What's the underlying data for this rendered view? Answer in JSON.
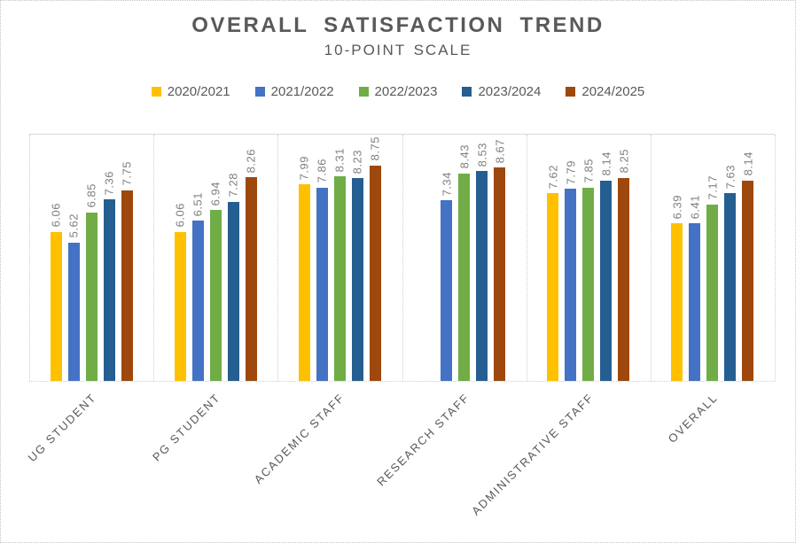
{
  "chart_data": {
    "type": "bar",
    "title": "OVERALL SATISFACTION TREND",
    "subtitle": "10-POINT SCALE",
    "categories": [
      "UG STUDENT",
      "PG STUDENT",
      "ACADEMIC STAFF",
      "RESEARCH STAFF",
      "ADMINISTRATIVE STAFF",
      "OVERALL"
    ],
    "series": [
      {
        "name": "2020/2021",
        "color": "#FFC000",
        "values": [
          6.06,
          6.06,
          7.99,
          null,
          7.62,
          6.39
        ]
      },
      {
        "name": "2021/2022",
        "color": "#4472C4",
        "values": [
          5.62,
          6.51,
          7.86,
          7.34,
          7.79,
          6.41
        ]
      },
      {
        "name": "2022/2023",
        "color": "#70AD47",
        "values": [
          6.85,
          6.94,
          8.31,
          8.43,
          7.85,
          7.17
        ]
      },
      {
        "name": "2023/2024",
        "color": "#255E91",
        "values": [
          7.36,
          7.28,
          8.23,
          8.53,
          8.14,
          7.63
        ]
      },
      {
        "name": "2024/2025",
        "color": "#9E480E",
        "values": [
          7.75,
          8.26,
          8.75,
          8.67,
          8.25,
          8.14
        ]
      }
    ],
    "ylim": [
      0,
      10
    ],
    "value_labels": true,
    "value_label_color": "#7f7f7f",
    "category_label_color": "#595959",
    "legend_position": "top",
    "grid": "vertical category separators, dotted",
    "yaxis_visible": false
  }
}
